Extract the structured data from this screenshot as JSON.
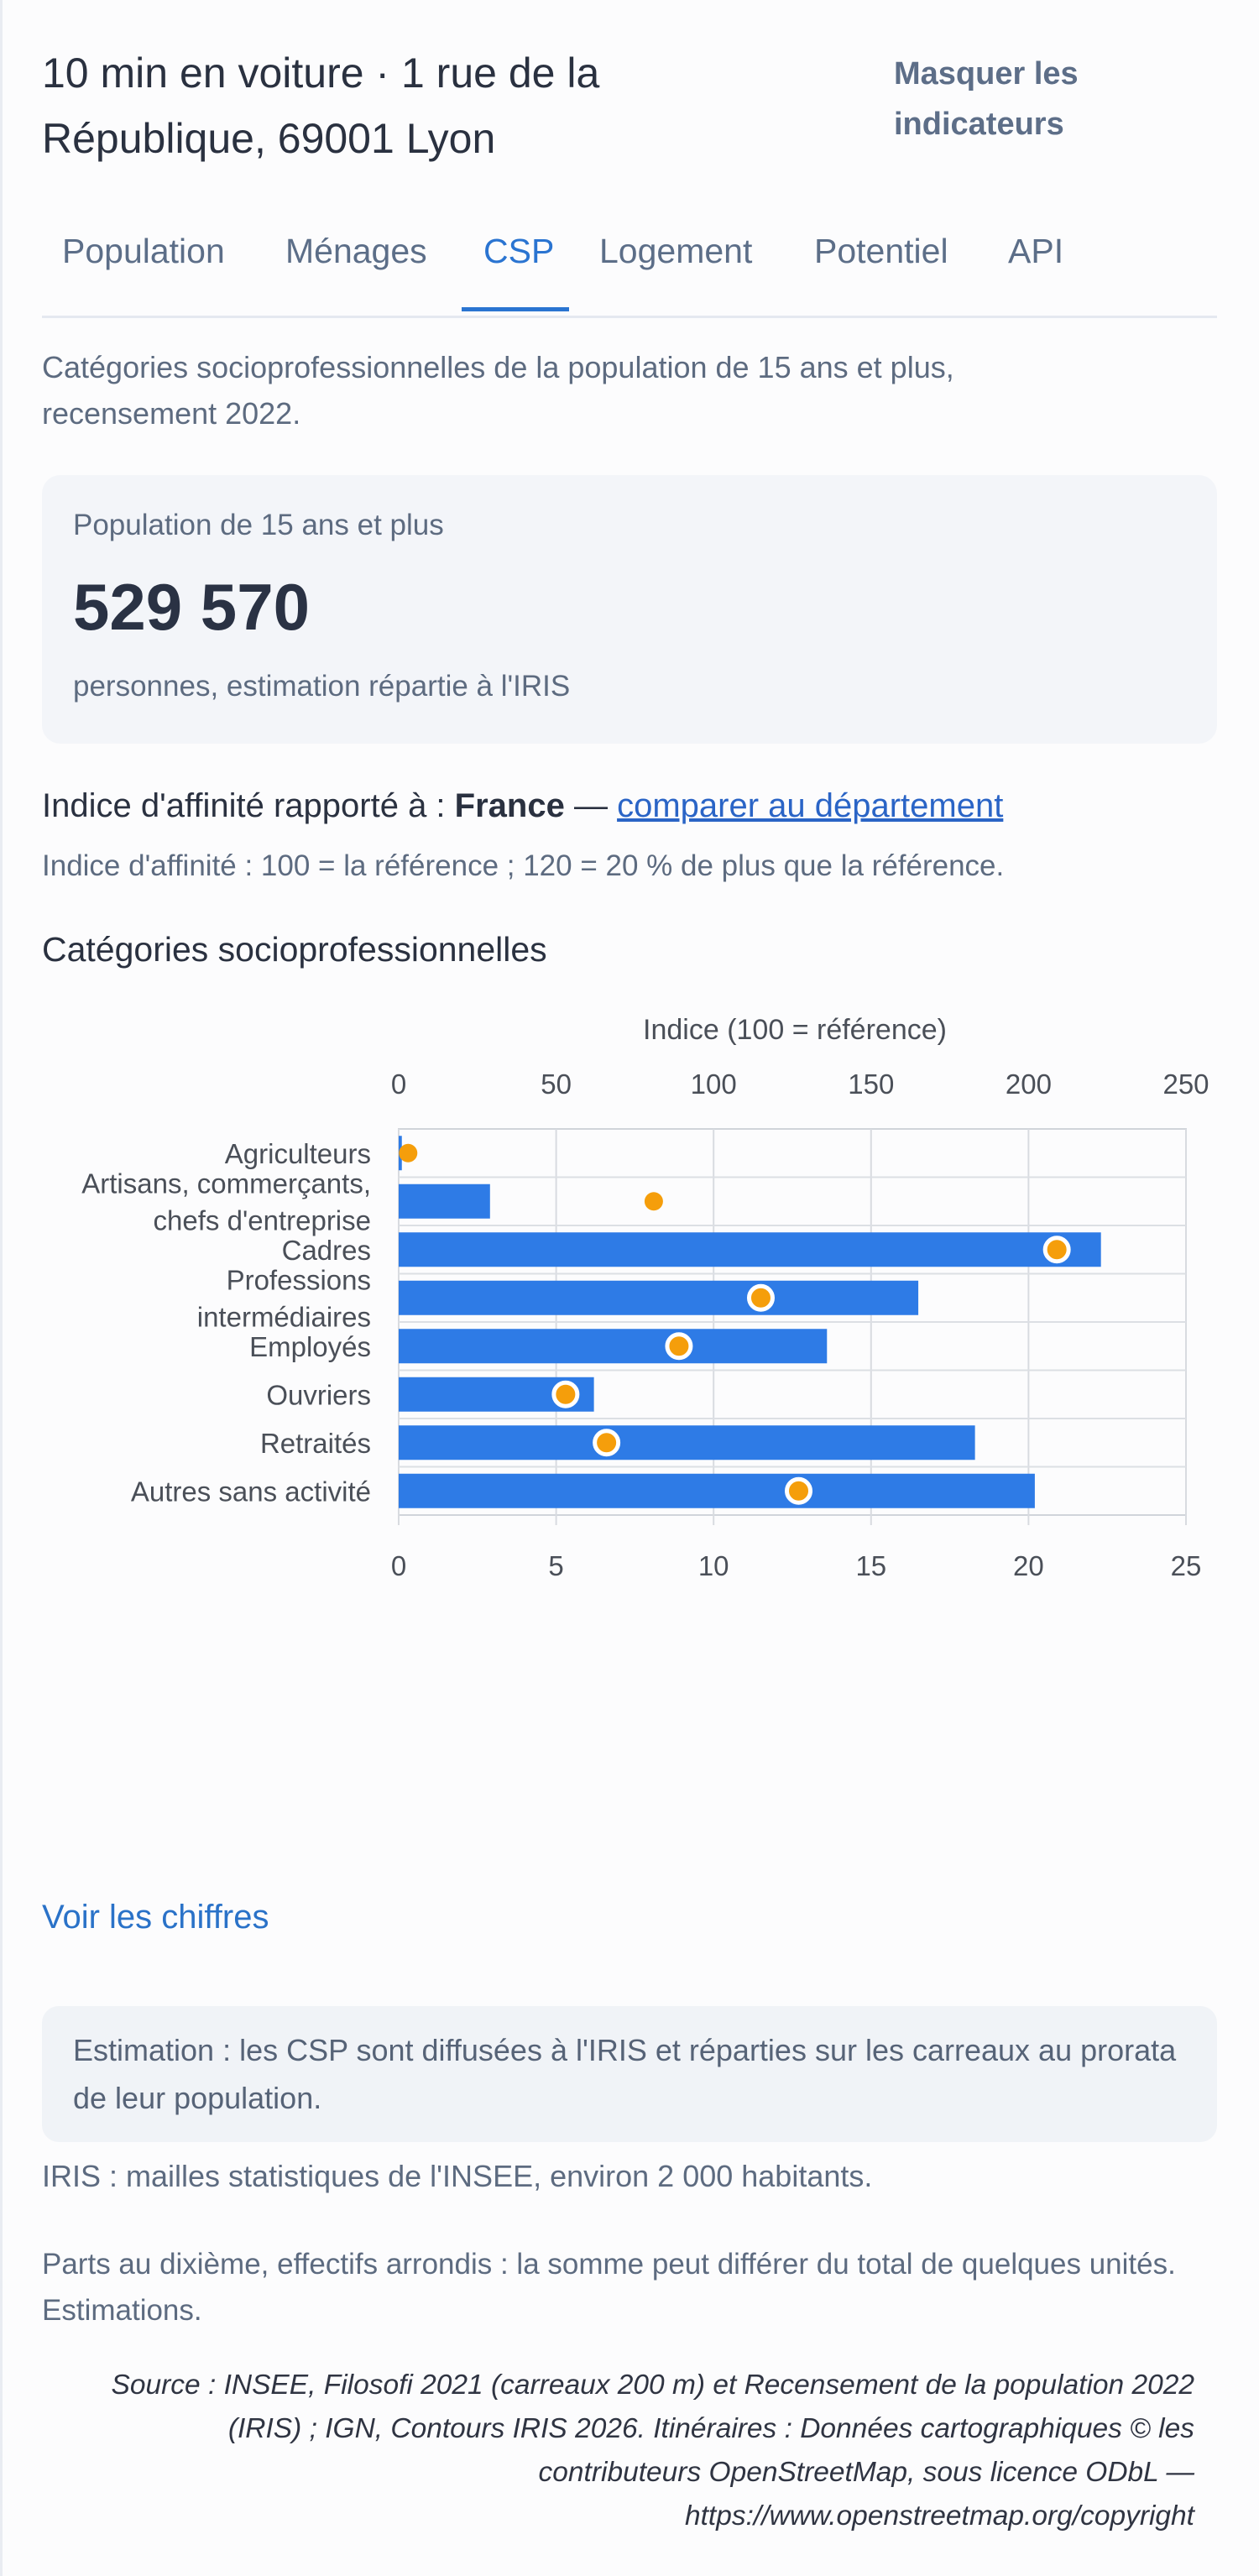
{
  "header": {
    "title": "10 min en voiture · 1 rue de la République, 69001 Lyon",
    "toggle_label": "Masquer les indicateurs"
  },
  "tabs": [
    {
      "label": "Population",
      "active": false
    },
    {
      "label": "Ménages",
      "active": false
    },
    {
      "label": "CSP",
      "active": true
    },
    {
      "label": "Logement",
      "active": false
    },
    {
      "label": "Potentiel",
      "active": false
    },
    {
      "label": "API",
      "active": false
    }
  ],
  "description": "Catégories socioprofessionnelles de la population de 15 ans et plus, recensement 2022.",
  "population_card": {
    "label": "Population de 15 ans et plus",
    "value": "529 570",
    "note": "personnes, estimation répartie à l'IRIS"
  },
  "affinity": {
    "prefix": "Indice d'affinité rapporté à : ",
    "reference": "France",
    "separator": " — ",
    "compare_link": "comparer au département",
    "note": "Indice d'affinité : 100 = la référence ; 120 = 20 % de plus que la référence."
  },
  "chart_section_title": "Catégories socioprofessionnelles",
  "chart_data": {
    "type": "bar",
    "orientation": "horizontal",
    "categories": [
      "Agriculteurs",
      "Artisans, commerçants, chefs d'entreprise",
      "Cadres",
      "Professions intermédiaires",
      "Employés",
      "Ouvriers",
      "Retraités",
      "Autres sans activité"
    ],
    "category_lines": [
      [
        "Agriculteurs"
      ],
      [
        "Artisans, commerçants,",
        "chefs d'entreprise"
      ],
      [
        "Cadres"
      ],
      [
        "Professions",
        "intermédiaires"
      ],
      [
        "Employés"
      ],
      [
        "Ouvriers"
      ],
      [
        "Retraités"
      ],
      [
        "Autres sans activité"
      ]
    ],
    "series": [
      {
        "axis": "bottom",
        "values": [
          0.1,
          2.9,
          22.3,
          16.5,
          13.6,
          6.2,
          18.3,
          20.2
        ],
        "color": "#2e7be6"
      },
      {
        "axis": "top",
        "values": [
          3,
          81,
          209,
          115,
          89,
          53,
          66,
          127
        ],
        "color": "#f59e0b"
      }
    ],
    "top_axis": {
      "label": "Indice (100 = référence)",
      "ticks": [
        0,
        50,
        100,
        150,
        200,
        250
      ],
      "range": [
        0,
        250
      ]
    },
    "bottom_axis": {
      "label": "",
      "ticks": [
        0,
        5,
        10,
        15,
        20,
        25
      ],
      "range": [
        0,
        25
      ]
    },
    "grid": true
  },
  "voir_link": "Voir les chiffres",
  "estimation_note": "Estimation : les CSP sont diffusées à l'IRIS et réparties sur les carreaux au prorata de leur population.",
  "iris_note": "IRIS : mailles statistiques de l'INSEE, environ 2 000 habitants.",
  "parts_note": "Parts au dixième, effectifs arrondis : la somme peut différer du total de quelques unités. Estimations.",
  "source": "Source : INSEE, Filosofi 2021 (carreaux 200 m) et Recensement de la population 2022 (IRIS) ; IGN, Contours IRIS 2026. Itinéraires : Données cartographiques © les contributeurs OpenStreetMap, sous licence ODbL — https://www.openstreetmap.org/copyright"
}
